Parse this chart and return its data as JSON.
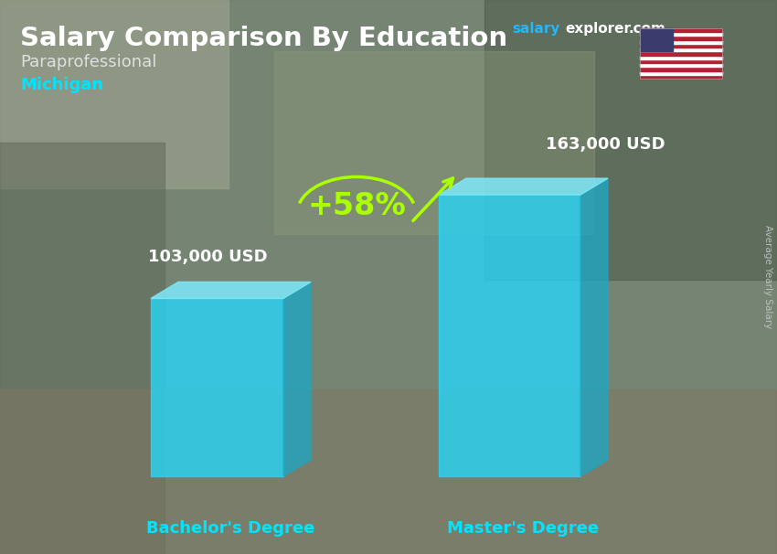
{
  "title": "Salary Comparison By Education",
  "subtitle1": "Paraprofessional",
  "subtitle2": "Michigan",
  "ylabel": "Average Yearly Salary",
  "categories": [
    "Bachelor's Degree",
    "Master's Degree"
  ],
  "values": [
    103000,
    163000
  ],
  "value_labels": [
    "103,000 USD",
    "163,000 USD"
  ],
  "pct_change": "+58%",
  "bar_color_front": "#29d4f5",
  "bar_color_side": "#1ba8c5",
  "bar_color_top": "#7ee8f8",
  "bar_alpha": 0.82,
  "title_color": "#ffffff",
  "subtitle1_color": "#e0e0e0",
  "subtitle2_color": "#00e5ff",
  "value_label_color": "#ffffff",
  "xticklabel_color": "#00e5ff",
  "pct_color": "#aaff00",
  "arrow_color": "#aaff00",
  "website_salary_color": "#29b6f6",
  "website_rest_color": "#ffffff",
  "ylabel_color": "#cccccc",
  "bg_colors": [
    "#5a6e5a",
    "#8a9e8a",
    "#a0a870",
    "#7a8870",
    "#6a7a6a"
  ],
  "figsize": [
    8.5,
    6.06
  ],
  "dpi": 100
}
